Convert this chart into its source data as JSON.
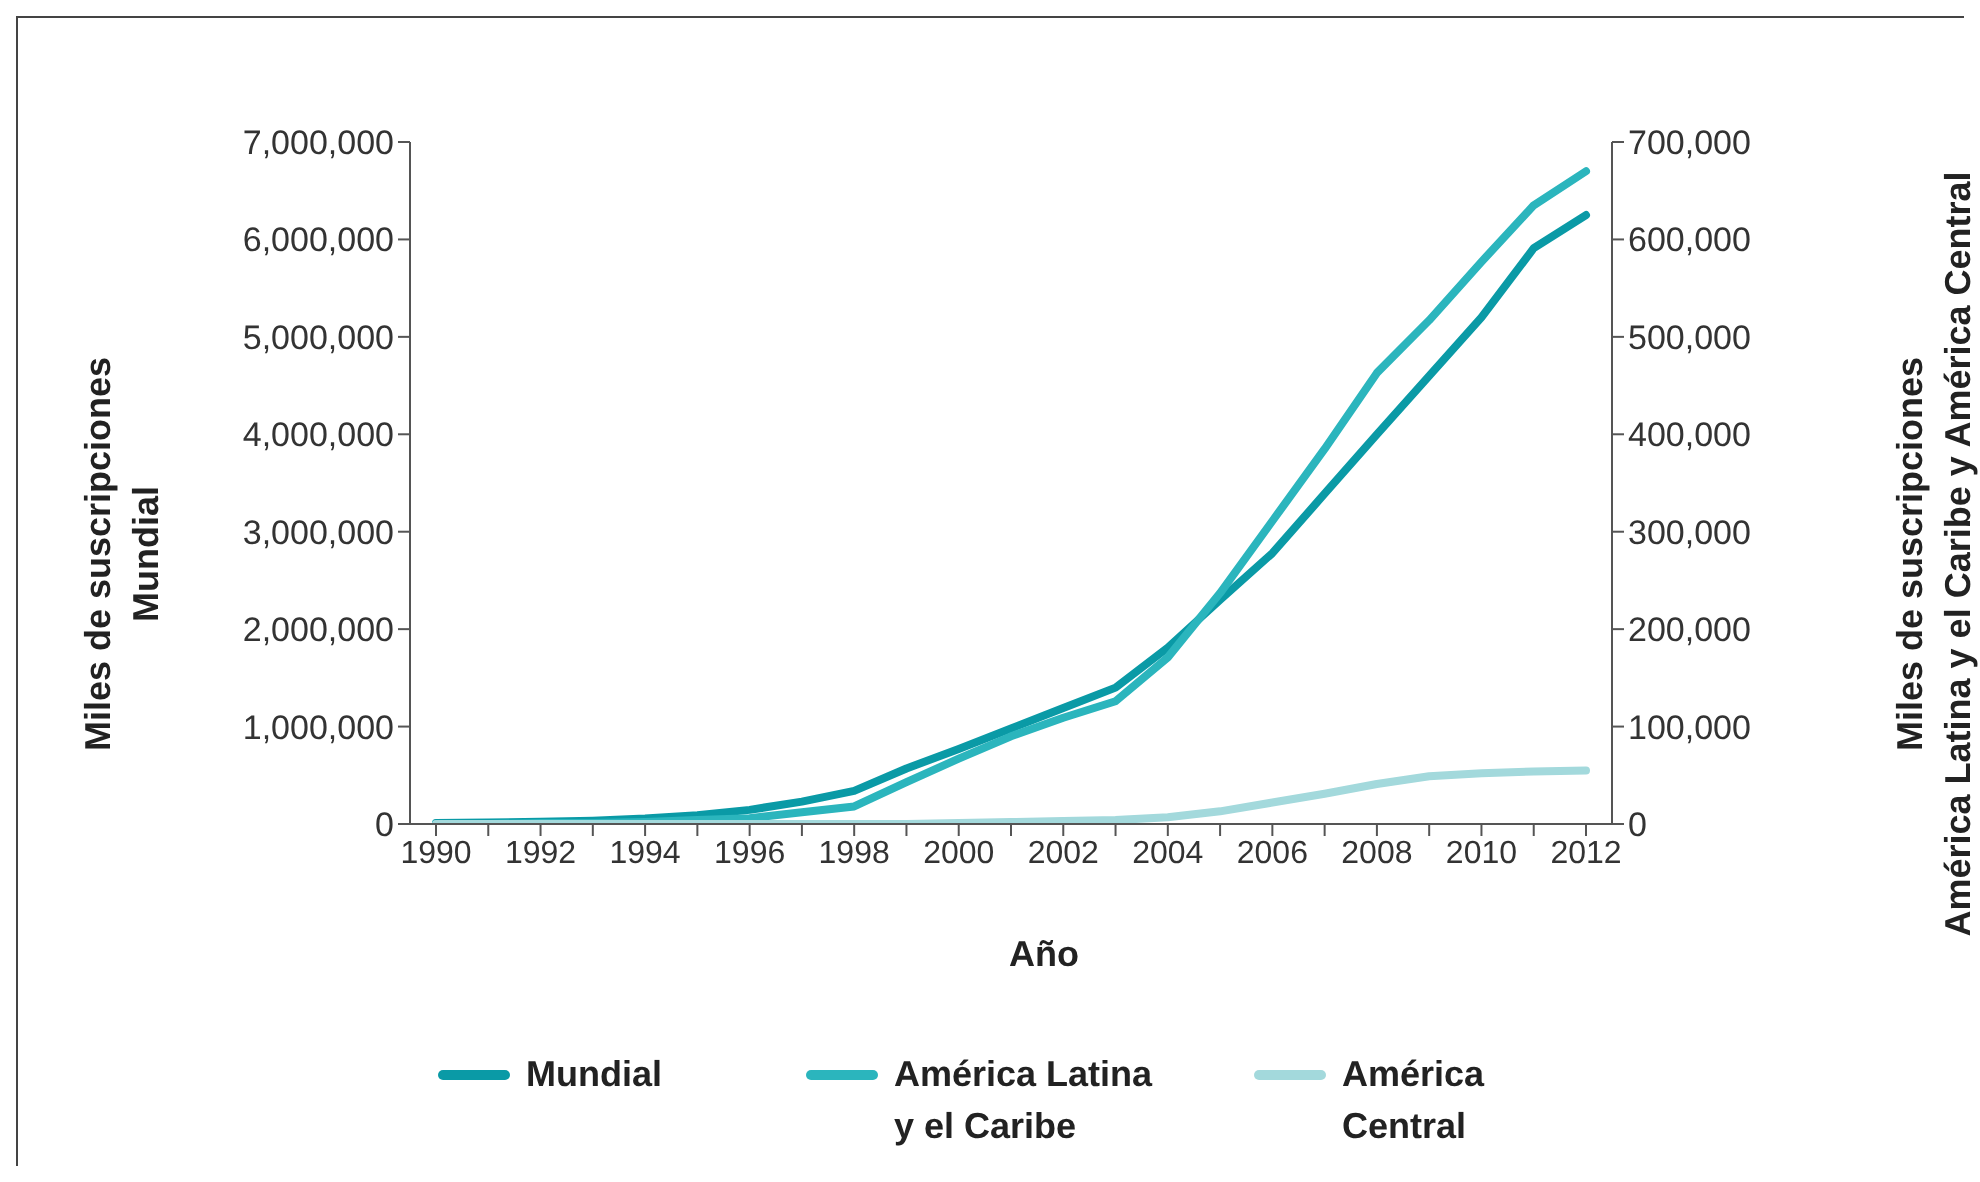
{
  "chart_data": {
    "type": "line",
    "xlabel": "Año",
    "ylabel": "Miles de suscripciones\nMundial",
    "y2label": "Miles de suscripciones\nAmérica Latina y el Caribe y América Central",
    "categories": [
      "1990",
      null,
      "1992",
      null,
      "1994",
      null,
      "1996",
      null,
      "1998",
      null,
      "2000",
      null,
      "2002",
      null,
      "2004",
      null,
      "2006",
      null,
      "2008",
      null,
      "2010",
      null,
      "2012"
    ],
    "series": [
      {
        "name": "Mundial",
        "color": "#0a9aa6",
        "values": [
          11000,
          16000,
          23000,
          34000,
          56000,
          91000,
          145000,
          230000,
          340000,
          570000,
          770000,
          980000,
          1190000,
          1400000,
          1810000,
          2300000,
          2780000,
          3390000,
          4000000,
          4600000,
          5200000,
          5910000,
          6250000
        ]
      },
      {
        "name": "América Latina y el Caribe",
        "color": "#2bb5bd",
        "axis": "y2",
        "values": [
          0,
          0,
          1000,
          1000,
          2000,
          4000,
          6000,
          12000,
          18000,
          43000,
          67000,
          90000,
          109000,
          126000,
          171000,
          237000,
          311000,
          385000,
          463000,
          517000,
          577000,
          635000,
          670000
        ]
      },
      {
        "name": "América Central",
        "color": "#a3d9dc",
        "axis": "y2",
        "values": [
          0,
          0,
          0,
          0,
          0,
          0,
          0,
          0,
          0,
          0,
          1000,
          2000,
          3000,
          4000,
          7000,
          13000,
          22000,
          31000,
          41000,
          49000,
          52000,
          54000,
          55000
        ]
      }
    ],
    "ylim": [
      0,
      7000000
    ],
    "yticks": [
      0,
      {
        "value": 1000000,
        "label": "1,000,000"
      },
      {
        "value": 2000000,
        "label": "2,000,000"
      },
      {
        "value": 3000000,
        "label": "3,000,000"
      },
      {
        "value": 4000000,
        "label": "4,000,000"
      },
      {
        "value": 5000000,
        "label": "5,000,000"
      },
      {
        "value": 6000000,
        "label": "6,000,000"
      },
      {
        "value": 7000000,
        "label": "7,000,000"
      }
    ],
    "y2lim": [
      0,
      700000
    ],
    "y2ticks": [
      0,
      {
        "value": 100000,
        "label": "100,000"
      },
      {
        "value": 200000,
        "label": "200,000"
      },
      {
        "value": 300000,
        "label": "300,000"
      },
      {
        "value": 400000,
        "label": "400,000"
      },
      {
        "value": 500000,
        "label": "500,000"
      },
      {
        "value": 600000,
        "label": "600,000"
      },
      {
        "value": 700000,
        "label": "700,000"
      }
    ],
    "grid": false,
    "legend": "bottom",
    "marker": "none",
    "line_style": "solid"
  }
}
